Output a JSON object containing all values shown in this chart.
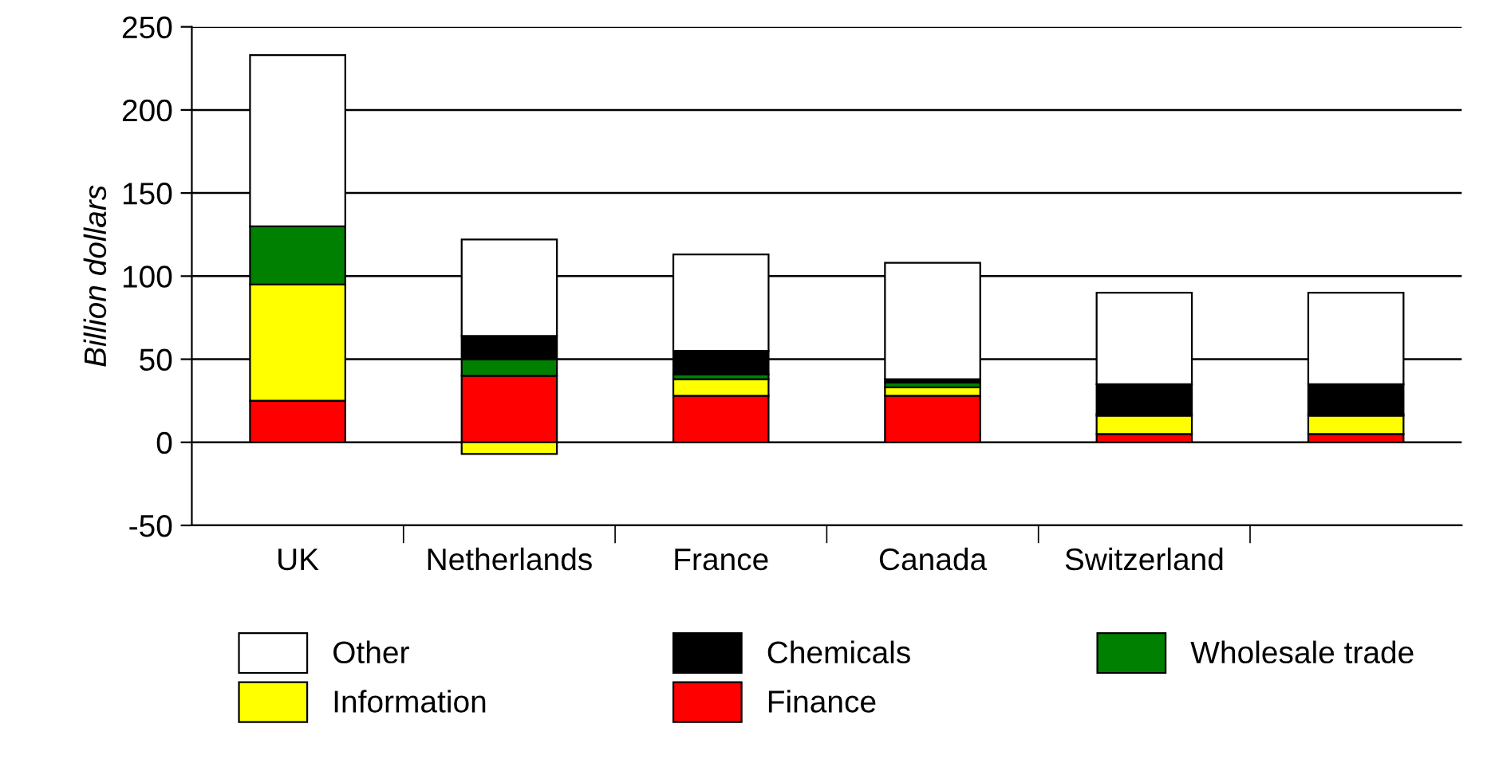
{
  "chart_data": {
    "type": "bar",
    "stacked": true,
    "ylabel": "Billion dollars",
    "categories": [
      "UK",
      "Netherlands",
      "France",
      "Canada",
      "Switzerland",
      null
    ],
    "series": [
      {
        "name": "Finance",
        "color": "#ff0000",
        "values": [
          25,
          40,
          28,
          28,
          5,
          5
        ]
      },
      {
        "name": "Information",
        "color": "#ffff00",
        "values": [
          70,
          -7,
          10,
          5,
          11,
          11
        ]
      },
      {
        "name": "Wholesale trade",
        "color": "#008000",
        "values": [
          35,
          10,
          3,
          3,
          1,
          1
        ]
      },
      {
        "name": "Chemicals",
        "color": "#000000",
        "values": [
          0,
          14,
          14,
          2,
          18,
          18
        ]
      },
      {
        "name": "Other",
        "color": "#ffffff",
        "values": [
          103,
          58,
          58,
          70,
          55,
          55
        ]
      }
    ],
    "ylim": [
      -50,
      250
    ],
    "yticks": [
      -50,
      0,
      50,
      100,
      150,
      200,
      250
    ],
    "grid": "y",
    "legend": "bottom"
  }
}
